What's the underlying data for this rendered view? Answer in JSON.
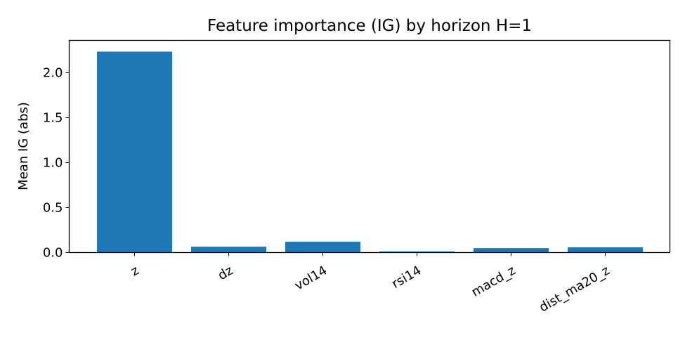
{
  "chart_data": {
    "type": "bar",
    "title": "Feature importance (IG) by horizon H=1",
    "xlabel": "",
    "ylabel": "Mean IG (abs)",
    "categories": [
      "z",
      "dz",
      "vol14",
      "rsi14",
      "macd_z",
      "dist_ma20_z"
    ],
    "values": [
      2.235,
      0.065,
      0.12,
      0.012,
      0.05,
      0.058
    ],
    "ylim": [
      0,
      2.36
    ],
    "yticks": [
      0.0,
      0.5,
      1.0,
      1.5,
      2.0
    ],
    "ytick_labels": [
      "0.0",
      "0.5",
      "1.0",
      "1.5",
      "2.0"
    ],
    "bar_color": "#1f77b4",
    "grid": false,
    "legend": "none"
  }
}
